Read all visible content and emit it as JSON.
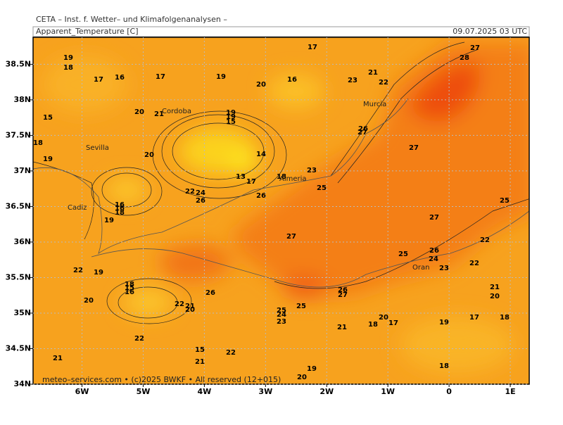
{
  "header": "CETA – Inst. f. Wetter– und Klimafolgenanalysen –",
  "title": "Apparent_Temperature [C]",
  "timestamp": "09.07.2025 03 UTC",
  "footer": "meteo–services.com • (c)2025 BWKF • All reserved (12+015)",
  "map": {
    "xlim": [
      -6.8,
      1.31
    ],
    "ylim": [
      34,
      38.88
    ],
    "xticks": [
      {
        "value": -6,
        "label": "6W"
      },
      {
        "value": -5,
        "label": "5W"
      },
      {
        "value": -4,
        "label": "4W"
      },
      {
        "value": -3,
        "label": "3W"
      },
      {
        "value": -2,
        "label": "2W"
      },
      {
        "value": -1,
        "label": "1W"
      },
      {
        "value": 0,
        "label": "0"
      },
      {
        "value": 1,
        "label": "1E"
      }
    ],
    "yticks": [
      {
        "value": 34,
        "label": "34N"
      },
      {
        "value": 34.5,
        "label": "34.5N"
      },
      {
        "value": 35,
        "label": "35N"
      },
      {
        "value": 35.5,
        "label": "35.5N"
      },
      {
        "value": 36,
        "label": "36N"
      },
      {
        "value": 36.5,
        "label": "36.5N"
      },
      {
        "value": 37,
        "label": "37N"
      },
      {
        "value": 37.5,
        "label": "37.5N"
      },
      {
        "value": 38,
        "label": "38N"
      },
      {
        "value": 38.5,
        "label": "38.5N"
      }
    ],
    "cities": [
      "Cordoba",
      "Sevilla",
      "Murcia",
      "Almeria",
      "Cadiz",
      "Oran"
    ],
    "contour_labels": [
      19,
      18,
      17,
      16,
      17,
      19,
      20,
      16,
      17,
      21,
      23,
      22,
      27,
      28,
      15,
      20,
      21,
      19,
      19,
      15,
      18,
      19,
      20,
      14,
      26,
      27,
      27,
      23,
      18,
      25,
      22,
      24,
      26,
      13,
      17,
      26,
      16,
      16,
      18,
      19,
      25,
      27,
      27,
      22,
      26,
      24,
      25,
      23,
      22,
      22,
      19,
      18,
      15,
      16,
      20,
      26,
      22,
      21,
      20,
      26,
      27,
      25,
      25,
      24,
      23,
      21,
      18,
      20,
      17,
      19,
      17,
      18,
      21,
      20,
      22,
      15,
      22,
      21,
      21,
      19,
      18,
      20
    ]
  }
}
